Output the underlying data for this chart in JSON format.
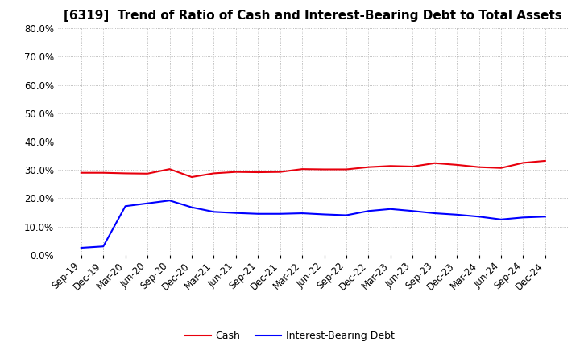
{
  "title": "[6319]  Trend of Ratio of Cash and Interest-Bearing Debt to Total Assets",
  "x_labels": [
    "Sep-19",
    "Dec-19",
    "Mar-20",
    "Jun-20",
    "Sep-20",
    "Dec-20",
    "Mar-21",
    "Jun-21",
    "Sep-21",
    "Dec-21",
    "Mar-22",
    "Jun-22",
    "Sep-22",
    "Dec-22",
    "Mar-23",
    "Jun-23",
    "Sep-23",
    "Dec-23",
    "Mar-24",
    "Jun-24",
    "Sep-24",
    "Dec-24"
  ],
  "cash": [
    29.0,
    29.0,
    28.8,
    28.7,
    30.3,
    27.5,
    28.8,
    29.3,
    29.2,
    29.3,
    30.3,
    30.2,
    30.2,
    31.0,
    31.4,
    31.2,
    32.4,
    31.8,
    31.0,
    30.7,
    32.5,
    33.2
  ],
  "ibd": [
    2.5,
    3.0,
    17.2,
    18.2,
    19.2,
    16.8,
    15.2,
    14.8,
    14.5,
    14.5,
    14.7,
    14.3,
    14.0,
    15.5,
    16.2,
    15.5,
    14.7,
    14.2,
    13.5,
    12.5,
    13.2,
    13.5
  ],
  "cash_color": "#e8000d",
  "ibd_color": "#0000ff",
  "background_color": "#ffffff",
  "grid_color": "#aaaaaa",
  "ylim": [
    0,
    80
  ],
  "yticks": [
    0,
    10,
    20,
    30,
    40,
    50,
    60,
    70,
    80
  ],
  "legend_cash": "Cash",
  "legend_ibd": "Interest-Bearing Debt",
  "title_fontsize": 11,
  "tick_fontsize": 8.5,
  "legend_fontsize": 9
}
